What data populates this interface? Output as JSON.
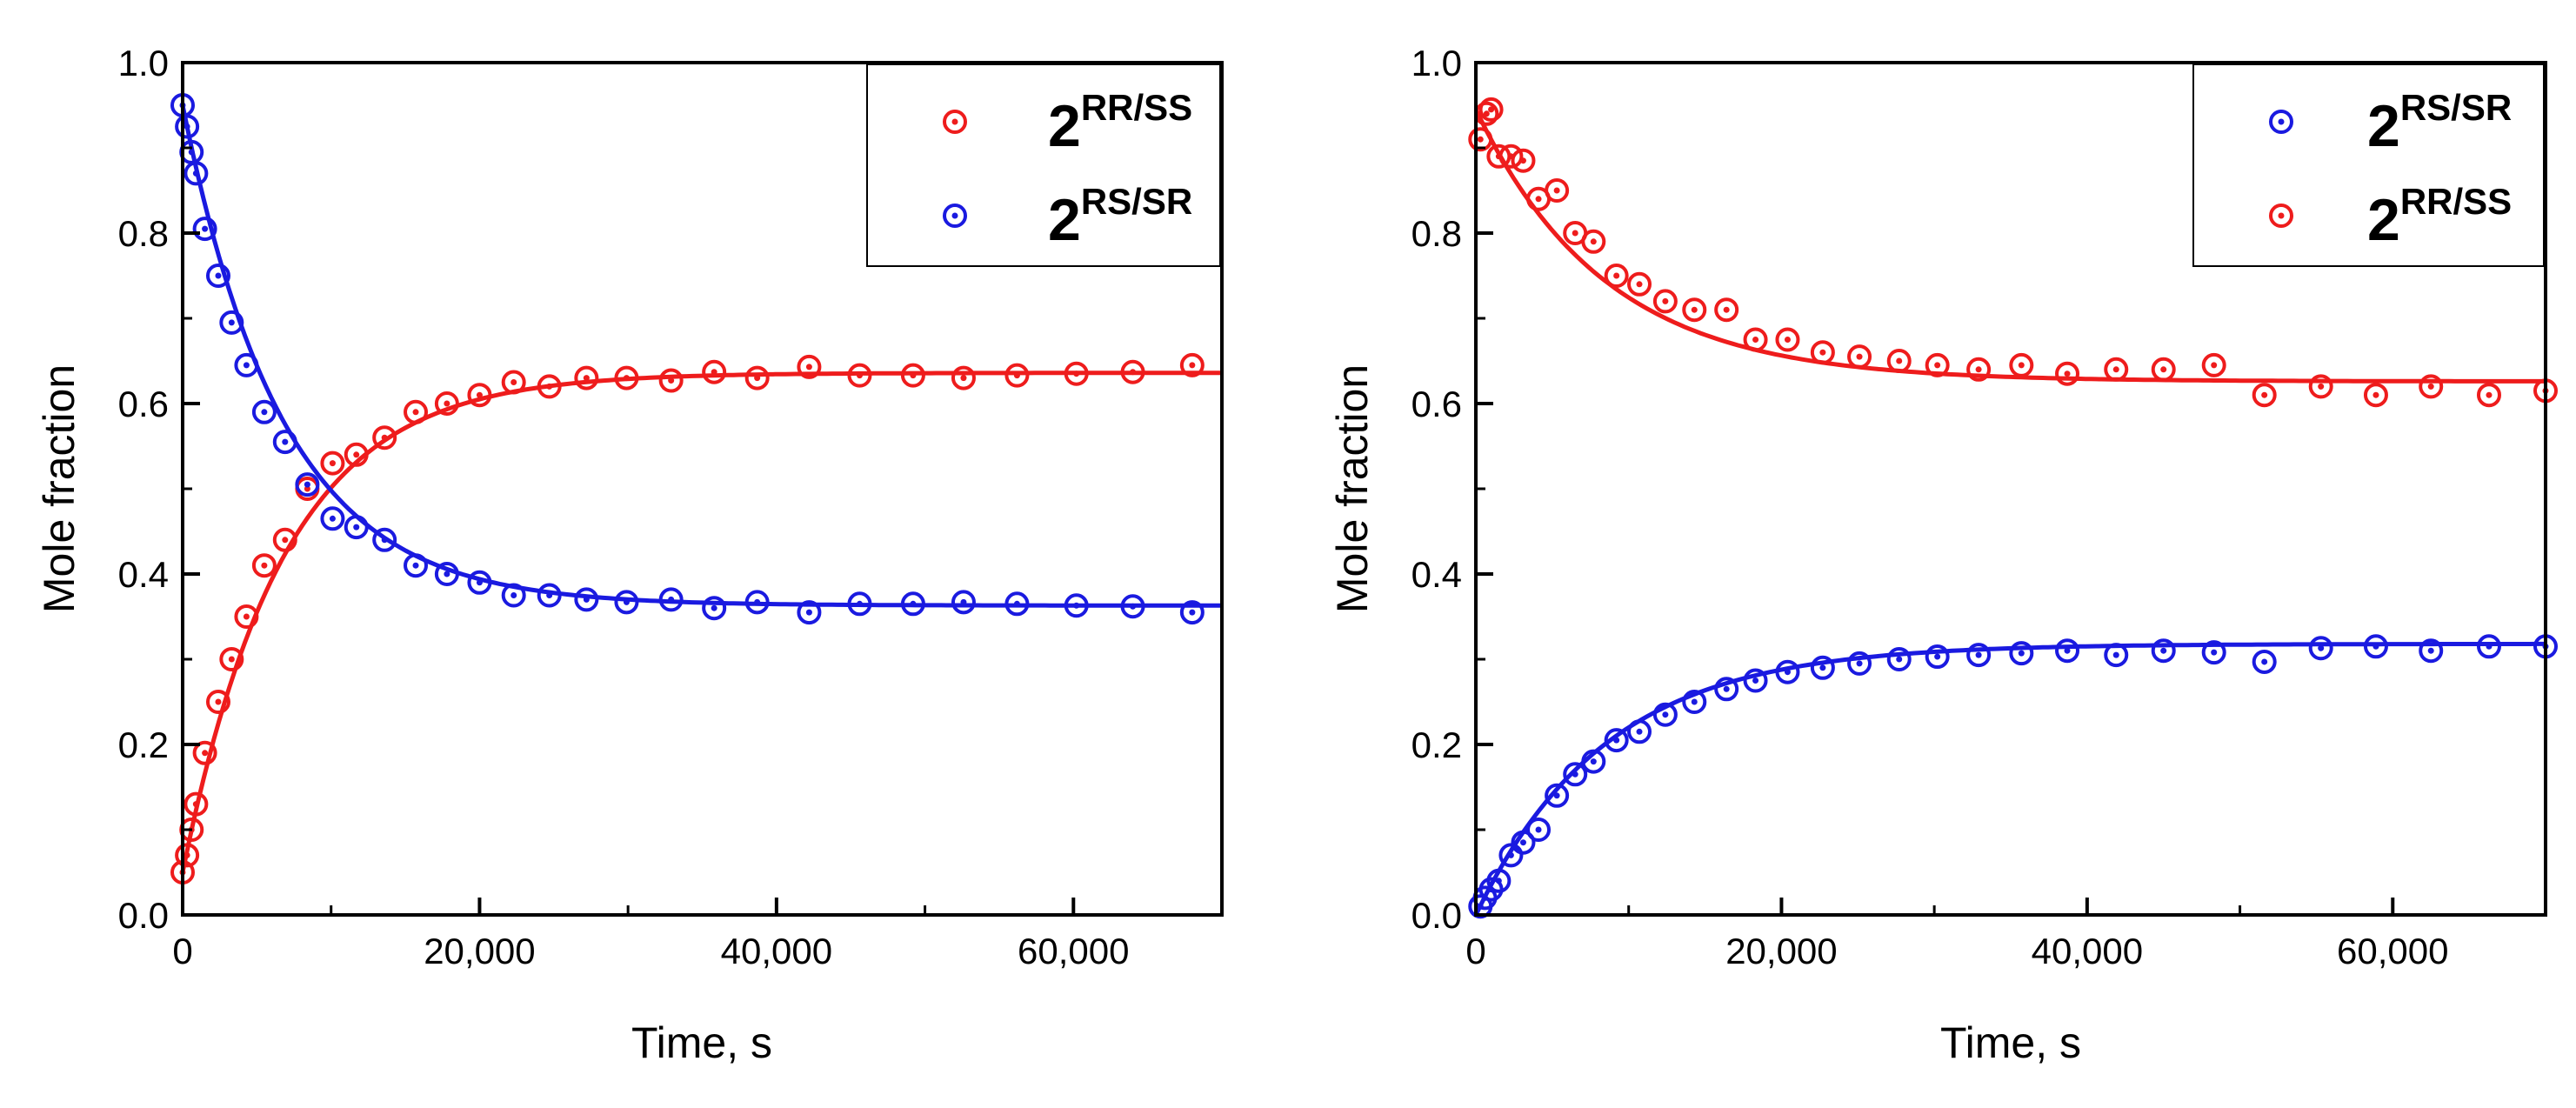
{
  "colors": {
    "red": "#ee1c1c",
    "blue": "#1a1ae0",
    "axis": "#000000"
  },
  "chart_data": [
    {
      "type": "scatter",
      "xlabel": "Time, s",
      "ylabel": "Mole fraction",
      "xlim": [
        0,
        70000
      ],
      "ylim": [
        0,
        1.0
      ],
      "xticks": [
        0,
        20000,
        40000,
        60000
      ],
      "xtick_labels": [
        "0",
        "20,000",
        "40,000",
        "60,000"
      ],
      "yticks": [
        0,
        0.2,
        0.4,
        0.6,
        0.8,
        1.0
      ],
      "ytick_labels": [
        "0.0",
        "0.2",
        "0.4",
        "0.6",
        "0.8",
        "1.0"
      ],
      "legend_position": "top-right",
      "series": [
        {
          "name": "2RR/SS",
          "base": "2",
          "sup": "RR/SS",
          "color": "red",
          "x": [
            0,
            300,
            600,
            900,
            1500,
            2400,
            3300,
            4300,
            5500,
            6900,
            8400,
            10100,
            11700,
            13600,
            15700,
            17800,
            20000,
            22300,
            24700,
            27200,
            29900,
            32900,
            35800,
            38700,
            42200,
            45600,
            49200,
            52600,
            56200,
            60200,
            64000,
            68000
          ],
          "y": [
            0.05,
            0.07,
            0.1,
            0.13,
            0.19,
            0.25,
            0.3,
            0.35,
            0.41,
            0.44,
            0.5,
            0.53,
            0.54,
            0.56,
            0.59,
            0.6,
            0.61,
            0.625,
            0.62,
            0.63,
            0.63,
            0.627,
            0.637,
            0.63,
            0.643,
            0.633,
            0.633,
            0.63,
            0.633,
            0.635,
            0.637,
            0.645
          ],
          "fit": {
            "start": 0.05,
            "end": 0.636,
            "tau": 6800
          }
        },
        {
          "name": "2RS/SR",
          "base": "2",
          "sup": "RS/SR",
          "color": "blue",
          "x": [
            0,
            300,
            600,
            900,
            1500,
            2400,
            3300,
            4300,
            5500,
            6900,
            8400,
            10100,
            11700,
            13600,
            15700,
            17800,
            20000,
            22300,
            24700,
            27200,
            29900,
            32900,
            35800,
            38700,
            42200,
            45600,
            49200,
            52600,
            56200,
            60200,
            64000,
            68000
          ],
          "y": [
            0.95,
            0.925,
            0.895,
            0.87,
            0.805,
            0.75,
            0.695,
            0.645,
            0.59,
            0.555,
            0.505,
            0.465,
            0.455,
            0.44,
            0.41,
            0.4,
            0.39,
            0.375,
            0.375,
            0.37,
            0.367,
            0.37,
            0.36,
            0.367,
            0.355,
            0.365,
            0.365,
            0.367,
            0.365,
            0.363,
            0.362,
            0.355
          ],
          "fit": {
            "start": 0.95,
            "end": 0.363,
            "tau": 6800
          }
        }
      ]
    },
    {
      "type": "scatter",
      "xlabel": "Time, s",
      "ylabel": "Mole fraction",
      "xlim": [
        0,
        70000
      ],
      "ylim": [
        0,
        1.0
      ],
      "xticks": [
        0,
        20000,
        40000,
        60000
      ],
      "xtick_labels": [
        "0",
        "20,000",
        "40,000",
        "60,000"
      ],
      "yticks": [
        0,
        0.2,
        0.4,
        0.6,
        0.8,
        1.0
      ],
      "ytick_labels": [
        "0.0",
        "0.2",
        "0.4",
        "0.6",
        "0.8",
        "1.0"
      ],
      "legend_position": "top-right",
      "series": [
        {
          "name": "2RS/SR",
          "base": "2",
          "sup": "RS/SR",
          "color": "blue",
          "x": [
            300,
            600,
            1000,
            1500,
            2300,
            3100,
            4100,
            5300,
            6500,
            7700,
            9200,
            10700,
            12400,
            14300,
            16400,
            18300,
            20400,
            22700,
            25100,
            27700,
            30200,
            32900,
            35700,
            38700,
            41900,
            45000,
            48300,
            51600,
            55300,
            58900,
            62500,
            66300,
            70000
          ],
          "y": [
            0.01,
            0.02,
            0.03,
            0.04,
            0.07,
            0.085,
            0.1,
            0.14,
            0.165,
            0.18,
            0.205,
            0.215,
            0.235,
            0.25,
            0.265,
            0.275,
            0.285,
            0.29,
            0.295,
            0.3,
            0.303,
            0.305,
            0.307,
            0.31,
            0.305,
            0.31,
            0.308,
            0.297,
            0.313,
            0.315,
            0.31,
            0.315,
            0.315
          ],
          "fit": {
            "start": 0.0,
            "end": 0.318,
            "tau": 8500
          }
        },
        {
          "name": "2RR/SS",
          "base": "2",
          "sup": "RR/SS",
          "color": "red",
          "x": [
            300,
            700,
            1000,
            1500,
            2300,
            3100,
            4100,
            5300,
            6500,
            7700,
            9200,
            10700,
            12400,
            14300,
            16400,
            18300,
            20400,
            22700,
            25100,
            27700,
            30200,
            32900,
            35700,
            38700,
            41900,
            45000,
            48300,
            51600,
            55300,
            58900,
            62500,
            66300,
            70000
          ],
          "y": [
            0.91,
            0.94,
            0.945,
            0.89,
            0.89,
            0.885,
            0.84,
            0.85,
            0.8,
            0.79,
            0.75,
            0.74,
            0.72,
            0.71,
            0.71,
            0.675,
            0.675,
            0.66,
            0.655,
            0.65,
            0.645,
            0.64,
            0.645,
            0.635,
            0.64,
            0.64,
            0.645,
            0.61,
            0.62,
            0.61,
            0.62,
            0.61,
            0.615
          ],
          "fit": {
            "start": 0.945,
            "end": 0.626,
            "tau": 8500
          }
        }
      ]
    }
  ]
}
